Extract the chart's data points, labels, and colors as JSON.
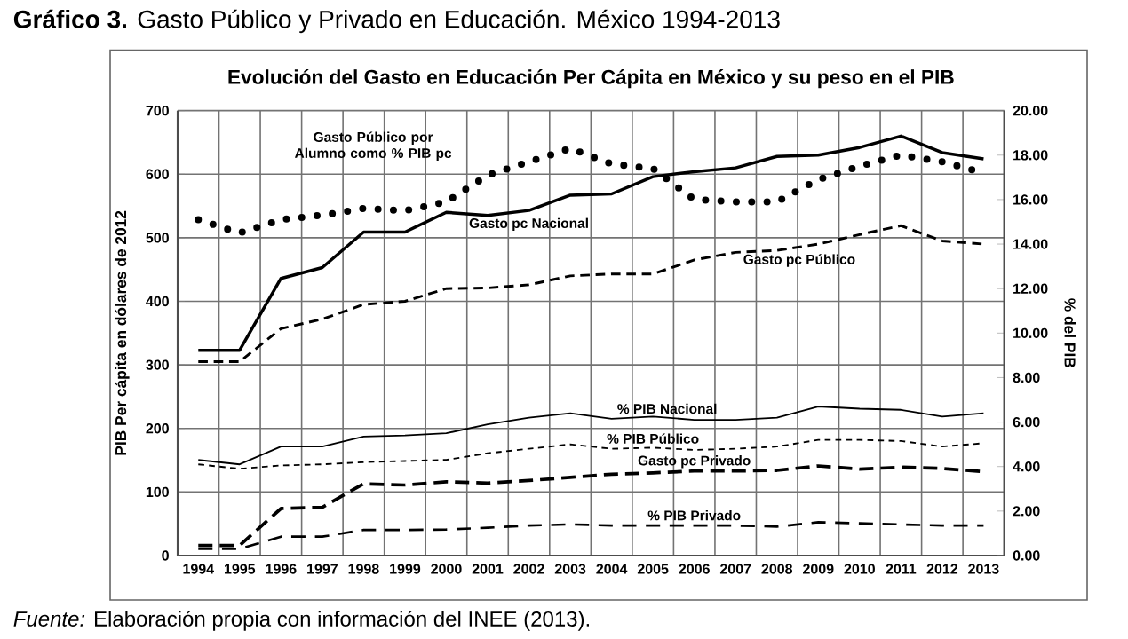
{
  "chart_data": {
    "type": "line",
    "title": "**Gráfico 3.** Gasto Público y Privado en Educación. México 1994-2013",
    "subtitle": "Evolución del Gasto en Educación Per Cápita en México y su peso en el PIB",
    "ylabel": "PIB Per cápita en dólares de 2012",
    "y2label": "% del PIB",
    "annotations": [
      "*Fuente:* Elaboración propia con información del INEE (2013)."
    ],
    "categories": [
      "1994",
      "1995",
      "1996",
      "1997",
      "1998",
      "1999",
      "2000",
      "2001",
      "2002",
      "2003",
      "2004",
      "2005",
      "2006",
      "2007",
      "2008",
      "2009",
      "2010",
      "2011",
      "2012",
      "2013"
    ],
    "series": [
      {
        "name": "Gasto pc Nacional",
        "color": "#000000",
        "line_style": "solid",
        "values": [
          323,
          323,
          436,
          453,
          509,
          509,
          540,
          535,
          543,
          567,
          569,
          596,
          604,
          610,
          628,
          630,
          642,
          660,
          634,
          624
        ]
      },
      {
        "name": "Gasto pc Público",
        "color": "#000000",
        "line_style": "dashed",
        "values": [
          305,
          305,
          357,
          372,
          395,
          400,
          420,
          421,
          426,
          440,
          443,
          443,
          465,
          477,
          480,
          490,
          505,
          519,
          495,
          490
        ]
      },
      {
        "name": "Gasto pc Privado",
        "color": "#000000",
        "line_style": "dashed",
        "values": [
          16,
          16,
          74,
          76,
          113,
          111,
          116,
          114,
          118,
          123,
          128,
          130,
          133,
          133,
          134,
          141,
          136,
          139,
          137,
          132
        ]
      },
      {
        "name": "Gasto Público por Alumno como % PIB pc",
        "color": "#000000",
        "line_style": "dotted",
        "axis": "y2",
        "values": [
          15.1,
          14.5,
          15.1,
          15.3,
          15.6,
          15.5,
          15.9,
          17.1,
          17.7,
          18.3,
          17.6,
          17.4,
          16.0,
          15.9,
          15.9,
          16.9,
          17.5,
          18.0,
          17.7,
          17.2
        ]
      },
      {
        "name": "% PIB Nacional",
        "color": "#000000",
        "line_style": "solid",
        "axis": "y2",
        "values": [
          4.3,
          4.1,
          4.9,
          4.9,
          5.35,
          5.4,
          5.5,
          5.9,
          6.2,
          6.4,
          6.15,
          6.25,
          6.1,
          6.1,
          6.2,
          6.7,
          6.6,
          6.55,
          6.25,
          6.4
        ]
      },
      {
        "name": "% PIB Público",
        "color": "#000000",
        "line_style": "dashed",
        "axis": "y2",
        "values": [
          4.1,
          3.9,
          4.05,
          4.1,
          4.2,
          4.25,
          4.3,
          4.6,
          4.8,
          5.0,
          4.8,
          4.85,
          4.75,
          4.8,
          4.9,
          5.2,
          5.2,
          5.15,
          4.9,
          5.05
        ]
      },
      {
        "name": "% PIB Privado",
        "color": "#000000",
        "line_style": "dashed",
        "axis": "y2",
        "values": [
          0.3,
          0.3,
          0.85,
          0.85,
          1.15,
          1.15,
          1.17,
          1.25,
          1.35,
          1.4,
          1.35,
          1.35,
          1.35,
          1.35,
          1.3,
          1.5,
          1.45,
          1.4,
          1.35,
          1.35
        ]
      }
    ],
    "ylim": [
      0,
      700
    ],
    "yticks": [
      0,
      100,
      200,
      300,
      400,
      500,
      600,
      700
    ],
    "y2lim": [
      0,
      20
    ],
    "y2ticks": [
      {
        "value": 0,
        "label": "0.00"
      },
      {
        "value": 2,
        "label": "2.00"
      },
      {
        "value": 4,
        "label": "4.00"
      },
      {
        "value": 6,
        "label": "6.00"
      },
      {
        "value": 8,
        "label": "8.00"
      },
      {
        "value": 10,
        "label": "10.00"
      },
      {
        "value": 12,
        "label": "12.00"
      },
      {
        "value": 14,
        "label": "14.00"
      },
      {
        "value": 16,
        "label": "16.00"
      },
      {
        "value": 18,
        "label": "18.00"
      },
      {
        "value": 20,
        "label": "20.00"
      }
    ],
    "grid": true
  }
}
